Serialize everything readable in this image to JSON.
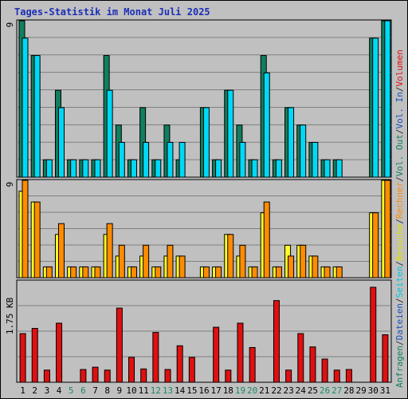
{
  "title": "Tages-Statistik im Monat Juli 2025",
  "colors": {
    "background": "#c0c0c0",
    "grid": "#808080",
    "anfragen": "#0f7f5f",
    "dateien": "#00d9f5",
    "seiten": "#00d9f5",
    "besuche": "#ffff24",
    "rechner": "#ff8c00",
    "volumen": "#e01010",
    "title": "#1b2fb8",
    "weekend_label": "#1a8a6a"
  },
  "chart_data": [
    {
      "type": "bar",
      "panel": "top",
      "y_max_label": "9",
      "ylim": [
        0,
        9
      ],
      "categories": [
        "1",
        "2",
        "3",
        "4",
        "5",
        "6",
        "7",
        "8",
        "9",
        "10",
        "11",
        "12",
        "13",
        "14",
        "15",
        "16",
        "17",
        "18",
        "19",
        "20",
        "21",
        "22",
        "23",
        "24",
        "25",
        "26",
        "27",
        "28",
        "29",
        "30",
        "31"
      ],
      "weekend_days": [
        "5",
        "6",
        "12",
        "13",
        "19",
        "20",
        "26",
        "27"
      ],
      "series": [
        {
          "name": "Anfragen",
          "color": "#0f7f5f",
          "values": [
            9,
            7,
            1,
            5,
            1,
            1,
            1,
            7,
            3,
            1,
            4,
            1,
            3,
            1,
            0,
            4,
            1,
            5,
            3,
            1,
            7,
            1,
            4,
            3,
            2,
            1,
            1,
            0,
            0,
            8,
            9
          ]
        },
        {
          "name": "Dateien",
          "color": "#00d9f5",
          "values": [
            8,
            7,
            1,
            4,
            1,
            1,
            1,
            5,
            2,
            1,
            2,
            1,
            2,
            2,
            0,
            4,
            1,
            5,
            2,
            1,
            6,
            1,
            4,
            3,
            2,
            1,
            1,
            0,
            0,
            8,
            9
          ]
        }
      ],
      "legend": [
        "Anfragen",
        "Dateien",
        "Seiten"
      ]
    },
    {
      "type": "bar",
      "panel": "middle",
      "y_max_label": "9",
      "ylim": [
        0,
        9
      ],
      "categories": [
        "1",
        "2",
        "3",
        "4",
        "5",
        "6",
        "7",
        "8",
        "9",
        "10",
        "11",
        "12",
        "13",
        "14",
        "15",
        "16",
        "17",
        "18",
        "19",
        "20",
        "21",
        "22",
        "23",
        "24",
        "25",
        "26",
        "27",
        "28",
        "29",
        "30",
        "31"
      ],
      "series": [
        {
          "name": "Besuche",
          "color": "#ffff24",
          "values": [
            8,
            7,
            1,
            4,
            1,
            1,
            1,
            4,
            2,
            1,
            2,
            1,
            2,
            2,
            0,
            1,
            1,
            4,
            2,
            1,
            6,
            1,
            3,
            3,
            2,
            1,
            1,
            0,
            0,
            6,
            9
          ]
        },
        {
          "name": "Rechner",
          "color": "#ff8c00",
          "values": [
            9,
            7,
            1,
            5,
            1,
            1,
            1,
            5,
            3,
            1,
            3,
            1,
            3,
            2,
            0,
            1,
            1,
            4,
            3,
            1,
            7,
            1,
            2,
            3,
            2,
            1,
            1,
            0,
            0,
            6,
            9
          ]
        }
      ],
      "legend": [
        "Besuche",
        "Rechner"
      ]
    },
    {
      "type": "bar",
      "panel": "bottom",
      "y_max_label": "1.75 KB",
      "ylim": [
        0,
        1.75
      ],
      "categories": [
        "1",
        "2",
        "3",
        "4",
        "5",
        "6",
        "7",
        "8",
        "9",
        "10",
        "11",
        "12",
        "13",
        "14",
        "15",
        "16",
        "17",
        "18",
        "19",
        "20",
        "21",
        "22",
        "23",
        "24",
        "25",
        "26",
        "27",
        "28",
        "29",
        "30",
        "31"
      ],
      "series": [
        {
          "name": "Volumen",
          "color": "#e01010",
          "values": [
            0.84,
            0.93,
            0.21,
            1.02,
            0,
            0.22,
            0.26,
            0.21,
            1.28,
            0.43,
            0.23,
            0.86,
            0.22,
            0.63,
            0.43,
            0,
            0.95,
            0.21,
            1.02,
            0.6,
            0,
            1.41,
            0.21,
            0.84,
            0.61,
            0.4,
            0.21,
            0.22,
            0,
            1.64,
            0.82
          ]
        }
      ],
      "legend": [
        "Volumen",
        "Vol. In",
        "Vol. Out"
      ]
    }
  ],
  "right_legend": [
    {
      "text": "Anfragen",
      "color": "#0f7f5f"
    },
    {
      "text": "/",
      "color": "#333333"
    },
    {
      "text": "Dateien",
      "color": "#1b4fb8"
    },
    {
      "text": "/",
      "color": "#333333"
    },
    {
      "text": "Seiten",
      "color": "#00c8e0"
    },
    {
      "text": "/",
      "color": "#333333"
    },
    {
      "text": "Besuche",
      "color": "#e0e000"
    },
    {
      "text": "/",
      "color": "#333333"
    },
    {
      "text": "Rechner",
      "color": "#ff8c00"
    },
    {
      "text": "/",
      "color": "#333333"
    },
    {
      "text": "Vol. Out",
      "color": "#0f7f5f"
    },
    {
      "text": "/",
      "color": "#333333"
    },
    {
      "text": "Vol. In",
      "color": "#1b4fb8"
    },
    {
      "text": "/",
      "color": "#333333"
    },
    {
      "text": "Volumen",
      "color": "#e01010"
    }
  ]
}
